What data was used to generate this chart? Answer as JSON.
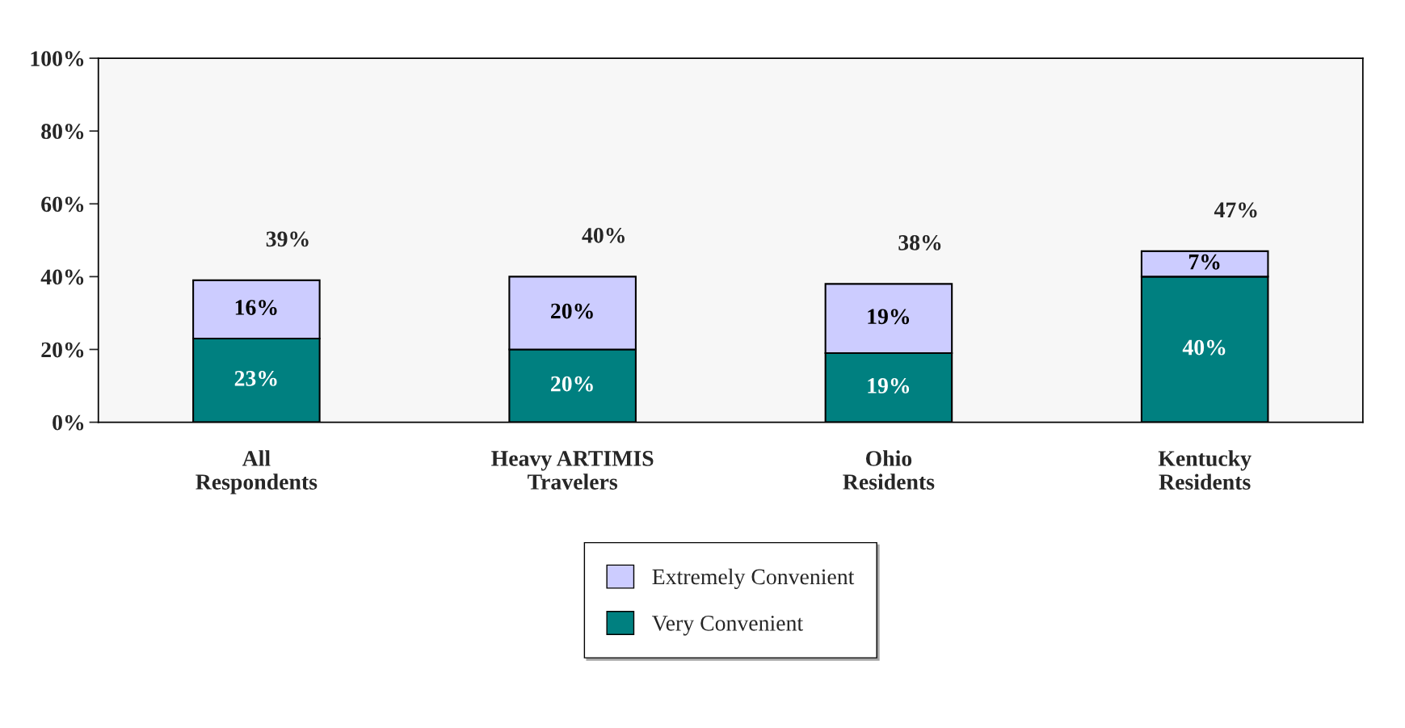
{
  "chart_data": {
    "type": "bar",
    "stacked": true,
    "categories": [
      "All\nRespondents",
      "Heavy ARTIMIS\nTravelers",
      "Ohio\nResidents",
      "Kentucky\nResidents"
    ],
    "series": [
      {
        "name": "Very Convenient",
        "color": "#008080",
        "values": [
          23,
          20,
          19,
          40
        ],
        "value_labels": [
          "23%",
          "20%",
          "19%",
          "40%"
        ]
      },
      {
        "name": "Extremely Convenient",
        "color": "#ccccff",
        "values": [
          16,
          20,
          19,
          7
        ],
        "value_labels": [
          "16%",
          "20%",
          "19%",
          "7%"
        ]
      }
    ],
    "totals": [
      "39%",
      "40%",
      "38%",
      "47%"
    ],
    "ylim": [
      0,
      100
    ],
    "yticks": [
      {
        "value": 0,
        "label": "0%"
      },
      {
        "value": 20,
        "label": "20%"
      },
      {
        "value": 40,
        "label": "40%"
      },
      {
        "value": 60,
        "label": "60%"
      },
      {
        "value": 80,
        "label": "80%"
      },
      {
        "value": 100,
        "label": "100%"
      }
    ],
    "grid": false,
    "legend": "bottom"
  }
}
